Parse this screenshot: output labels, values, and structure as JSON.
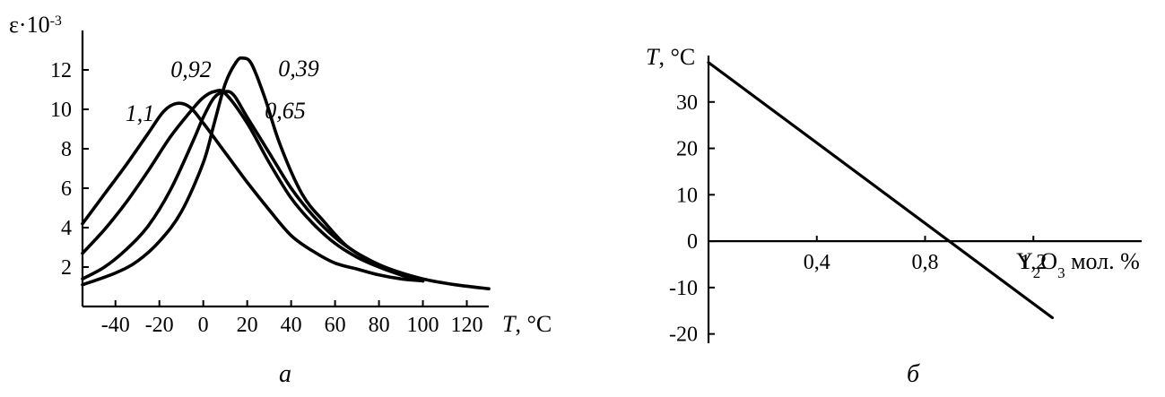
{
  "chart_data": [
    {
      "type": "line",
      "panel_label": "а",
      "ylabel_main": "ε·10",
      "ylabel_exp": "-3",
      "xlabel_italic": "T",
      "xlabel_unit": ", °C",
      "xlim": [
        -55,
        130
      ],
      "ylim": [
        0,
        14
      ],
      "x_ticks": [
        -40,
        -20,
        0,
        20,
        40,
        60,
        80,
        100,
        120
      ],
      "x_tick_labels": [
        "-40",
        "-20",
        "0",
        "20",
        "40",
        "60",
        "80",
        "100",
        "120"
      ],
      "y_ticks": [
        2,
        4,
        6,
        8,
        10,
        12
      ],
      "y_tick_labels": [
        "2",
        "4",
        "6",
        "8",
        "10",
        "12"
      ],
      "series": [
        {
          "name": "1,1",
          "x": [
            -55,
            -45,
            -35,
            -25,
            -18,
            -12,
            -6,
            0,
            10,
            20,
            30,
            40,
            50,
            60,
            70,
            80,
            90,
            100
          ],
          "y": [
            4.2,
            5.7,
            7.2,
            8.8,
            9.9,
            10.3,
            10.1,
            9.3,
            7.8,
            6.3,
            4.9,
            3.6,
            2.8,
            2.2,
            1.9,
            1.6,
            1.4,
            1.3
          ]
        },
        {
          "name": "0,92",
          "x": [
            -55,
            -45,
            -35,
            -25,
            -15,
            -5,
            0,
            5,
            10,
            20,
            30,
            40,
            50,
            60,
            70,
            80,
            90,
            100
          ],
          "y": [
            2.7,
            3.9,
            5.3,
            6.9,
            8.6,
            10.0,
            10.6,
            10.9,
            10.8,
            9.3,
            7.3,
            5.5,
            4.2,
            3.2,
            2.5,
            2.0,
            1.6,
            1.3
          ]
        },
        {
          "name": "0,65",
          "x": [
            -55,
            -45,
            -35,
            -25,
            -15,
            -5,
            0,
            5,
            10,
            14,
            20,
            30,
            40,
            50,
            60,
            70,
            80,
            90,
            100
          ],
          "y": [
            1.4,
            2.0,
            2.9,
            4.1,
            5.9,
            8.3,
            9.6,
            10.6,
            10.9,
            10.7,
            9.6,
            7.8,
            6.0,
            4.6,
            3.5,
            2.7,
            2.1,
            1.6,
            1.3
          ]
        },
        {
          "name": "0,39",
          "x": [
            -55,
            -40,
            -30,
            -20,
            -10,
            0,
            5,
            10,
            15,
            18,
            22,
            28,
            35,
            45,
            55,
            65,
            75,
            85,
            100,
            115,
            130
          ],
          "y": [
            1.1,
            1.7,
            2.3,
            3.3,
            4.8,
            7.3,
            9.3,
            11.3,
            12.4,
            12.6,
            12.3,
            10.6,
            8.2,
            5.7,
            4.3,
            3.1,
            2.4,
            1.9,
            1.4,
            1.1,
            0.9
          ]
        }
      ]
    },
    {
      "type": "line",
      "panel_label": "б",
      "ylabel_italic": "T",
      "ylabel_unit": ", °C",
      "xlabel_a": "Y",
      "xlabel_sub1": "2",
      "xlabel_b": "O",
      "xlabel_sub2": "3",
      "xlabel_c": " мол. %",
      "xlim": [
        0,
        1.6
      ],
      "ylim": [
        -22,
        40
      ],
      "x_ticks": [
        0.4,
        0.8,
        1.2
      ],
      "x_tick_labels": [
        "0,4",
        "0,8",
        "1,2"
      ],
      "y_ticks": [
        -20,
        -10,
        0,
        10,
        20,
        30
      ],
      "y_tick_labels": [
        "-20",
        "-10",
        "0",
        "10",
        "20",
        "30"
      ],
      "series": [
        {
          "x": [
            0,
            1.27
          ],
          "y": [
            38.5,
            -16.5
          ]
        }
      ]
    }
  ]
}
